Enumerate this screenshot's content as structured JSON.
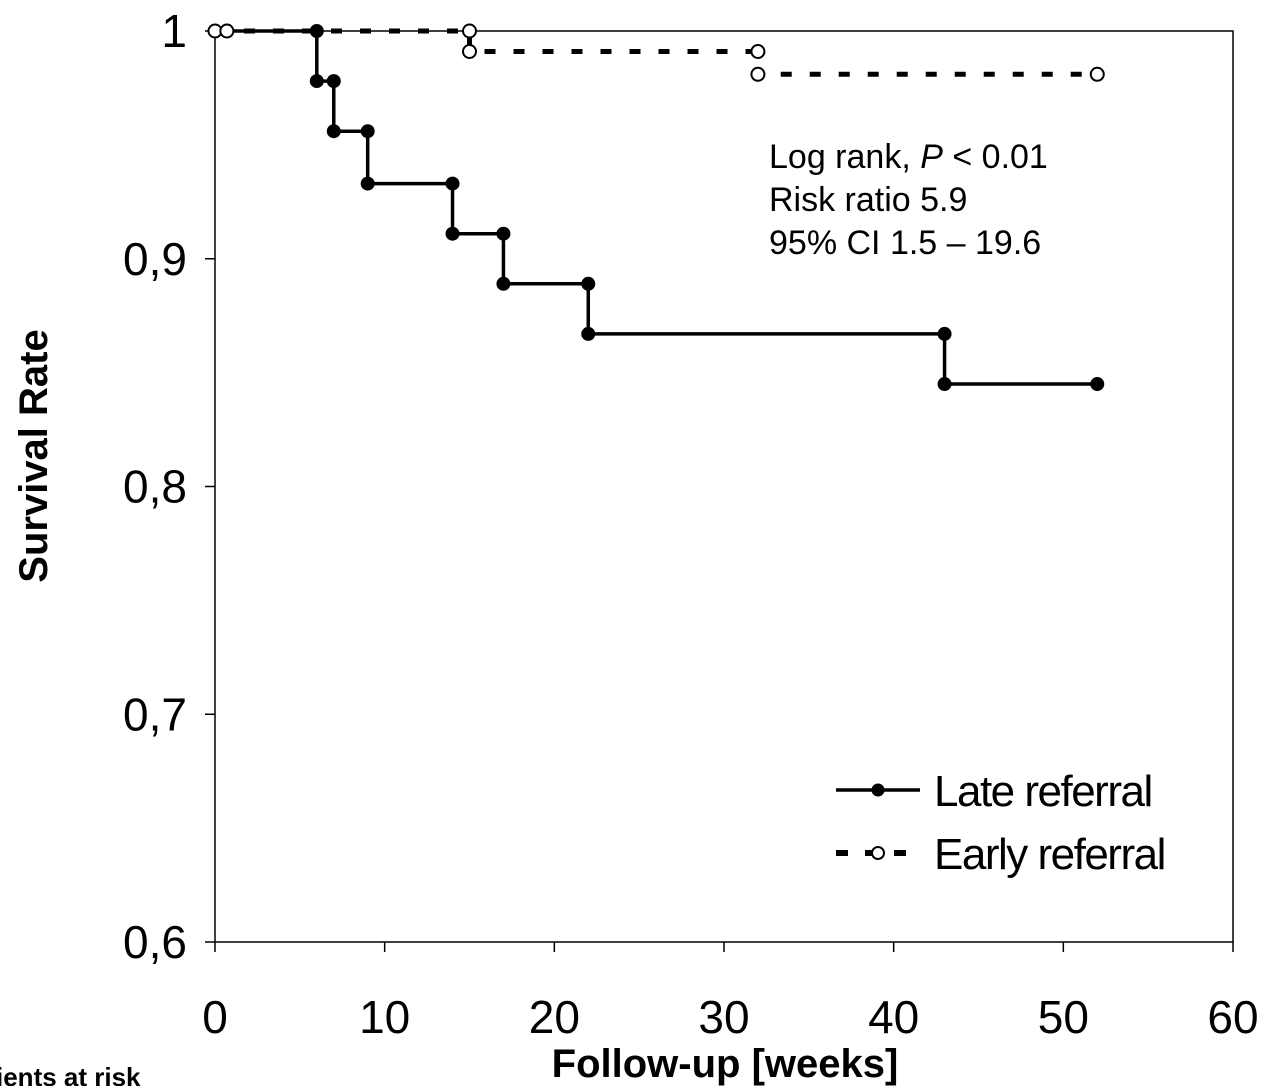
{
  "chart_data": {
    "type": "line",
    "step": true,
    "xlabel": "Follow-up [weeks]",
    "ylabel": "Survival Rate",
    "xlim": [
      0,
      60
    ],
    "ylim": [
      0.6,
      1.0
    ],
    "x_ticks": [
      0,
      10,
      20,
      30,
      40,
      50,
      60
    ],
    "x_tick_labels": [
      "0",
      "10",
      "20",
      "30",
      "40",
      "50",
      "60"
    ],
    "y_ticks": [
      0.6,
      0.7,
      0.8,
      0.9,
      1.0
    ],
    "y_tick_labels": [
      "0,6",
      "0,7",
      "0,8",
      "0,9",
      "1"
    ],
    "grid": false,
    "legend_position": "bottom-right",
    "series": [
      {
        "name": "Late referral",
        "style": "solid",
        "marker": "filled-circle",
        "color": "#000000",
        "x": [
          0,
          6,
          6,
          7,
          7,
          9,
          9,
          14,
          14,
          17,
          17,
          22,
          22,
          43,
          43,
          52
        ],
        "y": [
          1.0,
          1.0,
          0.978,
          0.978,
          0.956,
          0.956,
          0.933,
          0.933,
          0.911,
          0.911,
          0.889,
          0.889,
          0.867,
          0.867,
          0.845,
          0.845
        ]
      },
      {
        "name": "Early referral",
        "style": "dashed",
        "marker": "open-circle",
        "color": "#000000",
        "x": [
          0,
          0.7,
          15,
          15,
          32,
          32,
          52
        ],
        "y": [
          1.0,
          1.0,
          1.0,
          0.991,
          0.991,
          0.981,
          0.981
        ]
      }
    ],
    "annotations": [
      {
        "parts": [
          {
            "text": "Log rank, ",
            "italic": false
          },
          {
            "text": "P",
            "italic": true
          },
          {
            "text": " < 0.01",
            "italic": false
          }
        ]
      },
      {
        "parts": [
          {
            "text": "Risk ratio 5.9",
            "italic": false
          }
        ]
      },
      {
        "parts": [
          {
            "text": "95% CI 1.5 – 19.6",
            "italic": false
          }
        ]
      }
    ],
    "footer_text": "ients at risk"
  }
}
